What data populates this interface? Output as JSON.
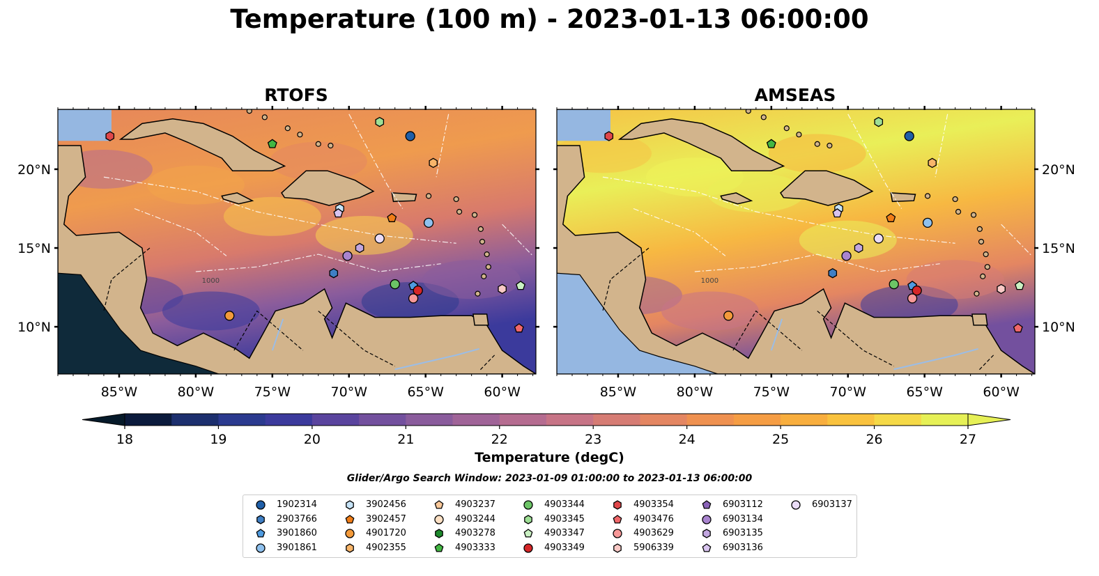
{
  "title": "Temperature (100 m) - 2023-01-13 06:00:00",
  "panels": [
    {
      "title": "RTOFS",
      "tone": "cool"
    },
    {
      "title": "AMSEAS",
      "tone": "warm"
    }
  ],
  "lon_ticks": [
    "85°W",
    "80°W",
    "75°W",
    "70°W",
    "65°W",
    "60°W"
  ],
  "lat_ticks": [
    "20°N",
    "15°N",
    "10°N"
  ],
  "contour_label": "1000",
  "colorbar": {
    "ticks": [
      "18",
      "19",
      "20",
      "21",
      "22",
      "23",
      "24",
      "25",
      "26",
      "27"
    ],
    "label": "Temperature (degC)",
    "colors": [
      "#0b1a3c",
      "#1c2f6e",
      "#2b3a8f",
      "#3b3a9c",
      "#5a449e",
      "#73509e",
      "#8a5c9c",
      "#a06498",
      "#b56c90",
      "#c77486",
      "#d67c74",
      "#e48662",
      "#ef9150",
      "#f59d44",
      "#f8ae3e",
      "#f9c23e",
      "#f5d947",
      "#e6f056"
    ]
  },
  "search_window": "Glider/Argo Search Window: 2023-01-09 01:00:00 to 2023-01-13 06:00:00",
  "legend": [
    {
      "id": "1902314",
      "shape": "circle",
      "color": "#1f5fa8"
    },
    {
      "id": "2903766",
      "shape": "hexagon",
      "color": "#3f7fc4"
    },
    {
      "id": "3901860",
      "shape": "pentagon",
      "color": "#4f9be0"
    },
    {
      "id": "3901861",
      "shape": "circle",
      "color": "#8fc1ee"
    },
    {
      "id": "3902456",
      "shape": "hexagon",
      "color": "#c6e3f7"
    },
    {
      "id": "3902457",
      "shape": "pentagon",
      "color": "#f07d17"
    },
    {
      "id": "4901720",
      "shape": "circle",
      "color": "#f39a3b"
    },
    {
      "id": "4902355",
      "shape": "hexagon",
      "color": "#f8b56a"
    },
    {
      "id": "4903237",
      "shape": "pentagon",
      "color": "#fbc99a"
    },
    {
      "id": "4903244",
      "shape": "circle",
      "color": "#fde0c4"
    },
    {
      "id": "4903278",
      "shape": "hexagon",
      "color": "#1e8a2c"
    },
    {
      "id": "4903333",
      "shape": "pentagon",
      "color": "#43b743"
    },
    {
      "id": "4903344",
      "shape": "circle",
      "color": "#6cc466"
    },
    {
      "id": "4903345",
      "shape": "hexagon",
      "color": "#9edf95"
    },
    {
      "id": "4903347",
      "shape": "pentagon",
      "color": "#caf1c3"
    },
    {
      "id": "4903349",
      "shape": "circle",
      "color": "#d62728"
    },
    {
      "id": "4903354",
      "shape": "hexagon",
      "color": "#e0474a"
    },
    {
      "id": "4903476",
      "shape": "pentagon",
      "color": "#f0676a"
    },
    {
      "id": "4903629",
      "shape": "circle",
      "color": "#f79898"
    },
    {
      "id": "5906339",
      "shape": "hexagon",
      "color": "#f9c9c6"
    },
    {
      "id": "6903112",
      "shape": "pentagon",
      "color": "#8a63b8"
    },
    {
      "id": "6903134",
      "shape": "circle",
      "color": "#a984cf"
    },
    {
      "id": "6903135",
      "shape": "hexagon",
      "color": "#c2a6e0"
    },
    {
      "id": "6903136",
      "shape": "pentagon",
      "color": "#d8c4ef"
    },
    {
      "id": "6903137",
      "shape": "circle",
      "color": "#eadcf7"
    }
  ],
  "floats": [
    {
      "id": "4903354",
      "lon": -85.6,
      "lat": 22.1
    },
    {
      "id": "4903333",
      "lon": -75.0,
      "lat": 21.6
    },
    {
      "id": "4903345",
      "lon": -68.0,
      "lat": 23.0
    },
    {
      "id": "1902314",
      "lon": -66.0,
      "lat": 22.1
    },
    {
      "id": "4902355",
      "lon": -64.5,
      "lat": 20.4
    },
    {
      "id": "3902456",
      "lon": -70.6,
      "lat": 17.5
    },
    {
      "id": "6903136",
      "lon": -70.7,
      "lat": 17.2
    },
    {
      "id": "3902457",
      "lon": -67.2,
      "lat": 16.9
    },
    {
      "id": "3901861",
      "lon": -64.8,
      "lat": 16.6
    },
    {
      "id": "6903137",
      "lon": -68.0,
      "lat": 15.6
    },
    {
      "id": "6903135",
      "lon": -69.3,
      "lat": 15.0
    },
    {
      "id": "6903134",
      "lon": -70.1,
      "lat": 14.5
    },
    {
      "id": "2903766",
      "lon": -71.0,
      "lat": 13.4
    },
    {
      "id": "4903344",
      "lon": -67.0,
      "lat": 12.7
    },
    {
      "id": "3901860",
      "lon": -65.8,
      "lat": 12.6
    },
    {
      "id": "4903349",
      "lon": -65.5,
      "lat": 12.3
    },
    {
      "id": "4903629",
      "lon": -65.8,
      "lat": 11.8
    },
    {
      "id": "4901720",
      "lon": -77.8,
      "lat": 10.7
    },
    {
      "id": "5906339",
      "lon": -60.0,
      "lat": 12.4
    },
    {
      "id": "4903347",
      "lon": -58.8,
      "lat": 12.6
    },
    {
      "id": "4903476",
      "lon": -58.9,
      "lat": 9.9
    }
  ]
}
